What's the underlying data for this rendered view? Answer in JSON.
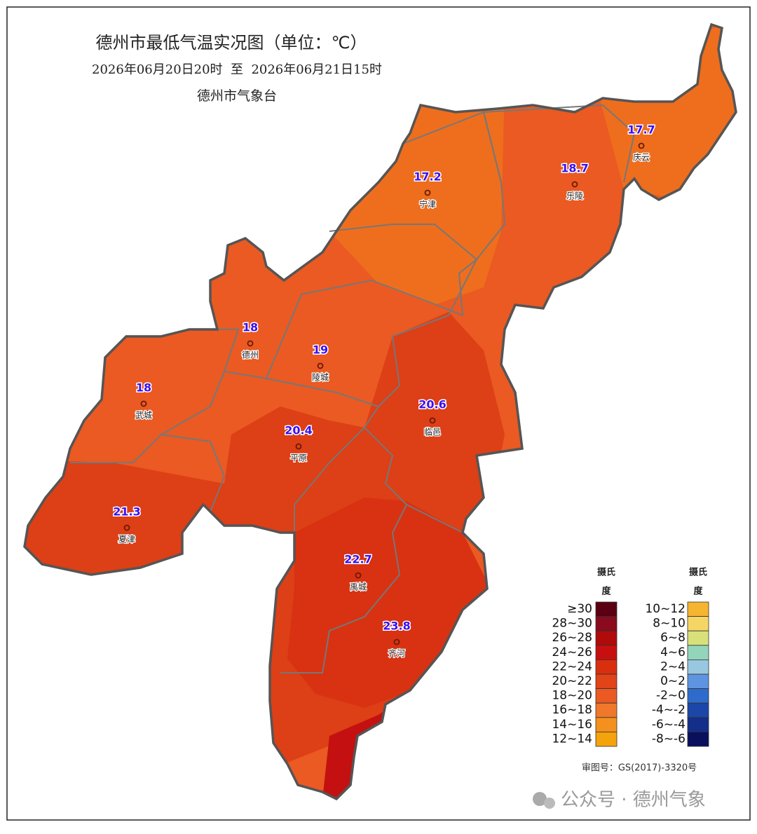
{
  "header": {
    "title": "德州市最低气温实况图（单位：℃）",
    "period": "2026年06月20日20时  至  2026年06月21日15时",
    "issuer": "德州市气象台"
  },
  "stations": [
    {
      "name": "庆云",
      "value": 17.7
    },
    {
      "name": "乐陵",
      "value": 18.7
    },
    {
      "name": "宁津",
      "value": 17.2
    },
    {
      "name": "德州",
      "value": 18
    },
    {
      "name": "陵城",
      "value": 19
    },
    {
      "name": "武城",
      "value": 18
    },
    {
      "name": "临邑",
      "value": 20.6
    },
    {
      "name": "平原",
      "value": 20.4
    },
    {
      "name": "夏津",
      "value": 21.3
    },
    {
      "name": "禹城",
      "value": 22.7
    },
    {
      "name": "齐河",
      "value": 23.8
    }
  ],
  "legend": {
    "columns": [
      {
        "title": [
          "摄氏",
          "度"
        ],
        "items": [
          {
            "label": "≥30",
            "color": "#5a0012"
          },
          {
            "label": "28~30",
            "color": "#8a0a1e"
          },
          {
            "label": "26~28",
            "color": "#b00a0a"
          },
          {
            "label": "24~26",
            "color": "#c80f0f"
          },
          {
            "label": "22~24",
            "color": "#d8300e"
          },
          {
            "label": "20~22",
            "color": "#e04418"
          },
          {
            "label": "18~20",
            "color": "#ea5a22"
          },
          {
            "label": "16~18",
            "color": "#f0782a"
          },
          {
            "label": "14~16",
            "color": "#f3901e"
          },
          {
            "label": "12~14",
            "color": "#f4a30c"
          }
        ]
      },
      {
        "title": [
          "摄氏",
          "度"
        ],
        "items": [
          {
            "label": "10~12",
            "color": "#f5b531"
          },
          {
            "label": "8~10",
            "color": "#f5d665"
          },
          {
            "label": "6~8",
            "color": "#d8e07a"
          },
          {
            "label": "4~6",
            "color": "#92d5bb"
          },
          {
            "label": "2~4",
            "color": "#9ac7e0"
          },
          {
            "label": "0~2",
            "color": "#5f94e0"
          },
          {
            "label": "-2~0",
            "color": "#2f6bcc"
          },
          {
            "label": "-4~-2",
            "color": "#1c46a8"
          },
          {
            "label": "-6~-4",
            "color": "#132f8a"
          },
          {
            "label": "-8~-6",
            "color": "#0a0f5e"
          }
        ]
      }
    ]
  },
  "footer": {
    "approval": "审图号：GS(2017)-3320号",
    "watermark": "公众号 · 德州气象"
  }
}
